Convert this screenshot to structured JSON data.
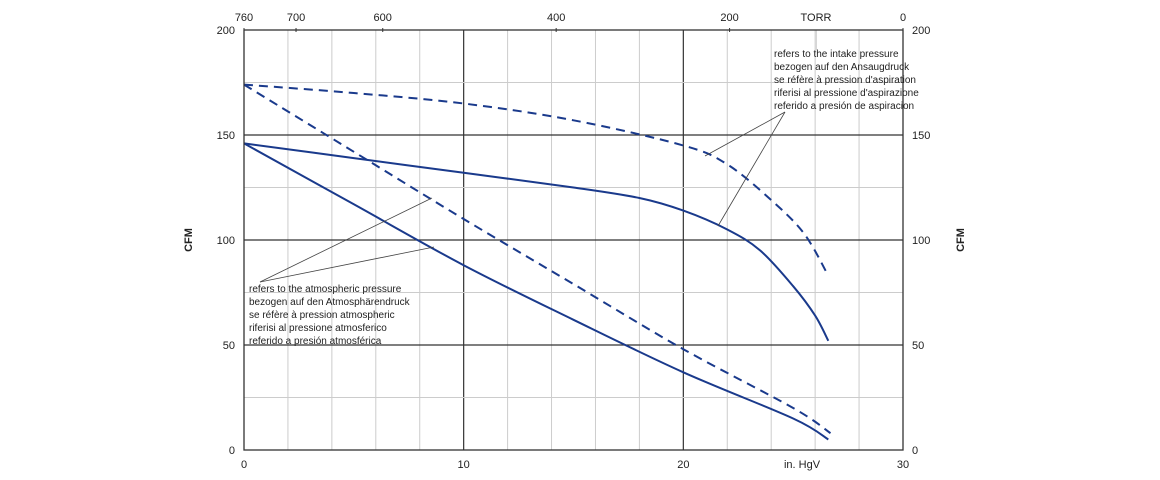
{
  "chart_data": {
    "type": "line",
    "xlabel": "in. HgV",
    "ylabel_left": "CFM",
    "ylabel_right": "CFM",
    "xlim": [
      0,
      30
    ],
    "ylim": [
      0,
      200
    ],
    "x_ticks": [
      "0",
      "10",
      "20",
      "30"
    ],
    "y_ticks": [
      "0",
      "50",
      "100",
      "150",
      "200"
    ],
    "top_axis": {
      "label": "TORR",
      "range": [
        760,
        0
      ],
      "ticks": [
        "760",
        "700",
        "600",
        "400",
        "200",
        "0"
      ]
    },
    "grid": true,
    "series": [
      {
        "style": "dashed",
        "color": "#1a3a8c",
        "x": [
          0,
          5,
          10,
          15,
          20,
          22,
          24,
          25.5,
          26.6
        ],
        "y": [
          174,
          170,
          165,
          157,
          145,
          136,
          119,
          103,
          83
        ]
      },
      {
        "style": "solid",
        "color": "#1a3a8c",
        "x": [
          0,
          5,
          10,
          15,
          18,
          20,
          22,
          23.5,
          25,
          26,
          26.6
        ],
        "y": [
          146,
          139,
          132,
          125,
          120,
          114,
          105,
          95,
          78,
          64,
          52
        ]
      },
      {
        "style": "dashed",
        "color": "#1a3a8c",
        "x": [
          0,
          5,
          10,
          15,
          20,
          25,
          26.7
        ],
        "y": [
          174,
          142,
          110,
          79,
          48,
          20,
          8
        ]
      },
      {
        "style": "solid",
        "color": "#1a3a8c",
        "x": [
          0,
          5,
          10,
          15,
          20,
          25,
          26.6
        ],
        "y": [
          146,
          117,
          88,
          62,
          37,
          15,
          5
        ]
      }
    ],
    "annotations": {
      "intake": [
        "refers to the intake pressure",
        "bezogen auf den Ansaugdruck",
        "se réfère à pression d'aspiration",
        "riferisi al pressione d'aspirazione",
        "referido a presión de aspiracion"
      ],
      "atmospheric": [
        "refers to the atmospheric pressure",
        "bezogen auf den Atmosphärendruck",
        "se réfère à pression atmospheric",
        "riferisi al pressione atmosferico",
        "referido a presión atmosférica"
      ]
    }
  }
}
